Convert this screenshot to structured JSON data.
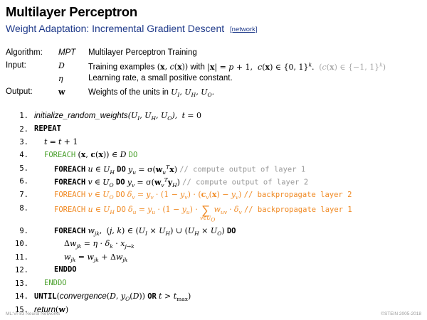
{
  "header": {
    "title": "Multilayer Perceptron",
    "subtitle": "Weight Adaptation: Incremental Gradient Descent",
    "link": "[network]"
  },
  "spec": {
    "algorithm_label": "Algorithm:",
    "algorithm_sym": "MPT",
    "algorithm_desc": "Multilayer Perceptron Training",
    "input_label": "Input:",
    "input_sym1": "D",
    "input_desc1_a": "Training examples",
    "input_desc1_b": "with",
    "input_sym2": "η",
    "input_desc2": "Learning rate, a small positive constant.",
    "output_label": "Output:",
    "output_sym": "w",
    "output_desc": "Weights of the units in"
  },
  "lines": [
    "1.",
    "2.",
    "3.",
    "4.",
    "5.",
    "6.",
    "7.",
    "8.",
    "9.",
    "10.",
    "11.",
    "12.",
    "13.",
    "14.",
    "15."
  ],
  "code": {
    "l1_fn": "initialize_random_weights",
    "kw_repeat": "REPEAT",
    "kw_foreach": "FOREACH",
    "kw_do": "DO",
    "kw_enddo": "ENDDO",
    "kw_until": "UNTIL",
    "kw_or": "OR",
    "cmt5": "// compute output of layer 1",
    "cmt6": "// compute output of layer 2",
    "cmt7": "// backpropagate layer 2",
    "cmt8": "// backpropagate layer 1",
    "l14_fn": "convergence",
    "l15_fn": "return"
  },
  "footer": {
    "left": "ML:VI-83   Neural Networks",
    "right": "©STEIN 2005-2018"
  },
  "colors": {
    "subtitle": "#1f3a8a",
    "green": "#4aa02c",
    "orange": "#f08a24",
    "comment": "#9a9a9a"
  }
}
